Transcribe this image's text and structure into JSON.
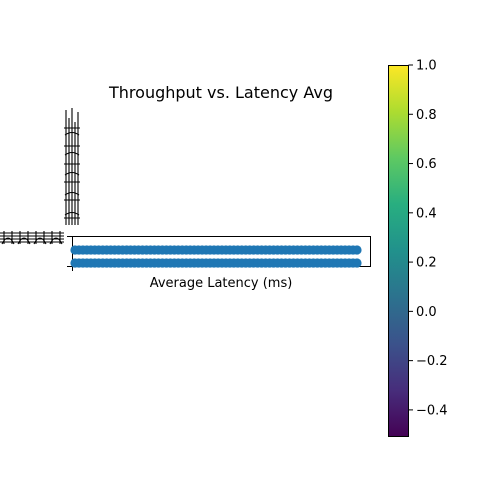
{
  "chart_data": {
    "type": "scatter",
    "title": "Throughput vs. Latency Avg",
    "xlabel": "Average Latency (ms)",
    "ylabel": "",
    "point_color": "#1f77b4",
    "rows": [
      {
        "label": "",
        "x_start": 0.0,
        "x_end": 1.0,
        "y": 1
      },
      {
        "label": "",
        "x_start": 0.0,
        "x_end": 1.0,
        "y": 0
      }
    ],
    "colorbar": {
      "colormap": "viridis",
      "range": [
        -0.51,
        1.0
      ],
      "ticks": [
        {
          "value": 1.0,
          "label": "1.0"
        },
        {
          "value": 0.8,
          "label": "0.8"
        },
        {
          "value": 0.6,
          "label": "0.6"
        },
        {
          "value": 0.4,
          "label": "0.4"
        },
        {
          "value": 0.2,
          "label": "0.2"
        },
        {
          "value": 0.0,
          "label": "0.0"
        },
        {
          "value": -0.2,
          "label": "−0.2"
        },
        {
          "value": -0.4,
          "label": "−0.4"
        }
      ]
    }
  }
}
